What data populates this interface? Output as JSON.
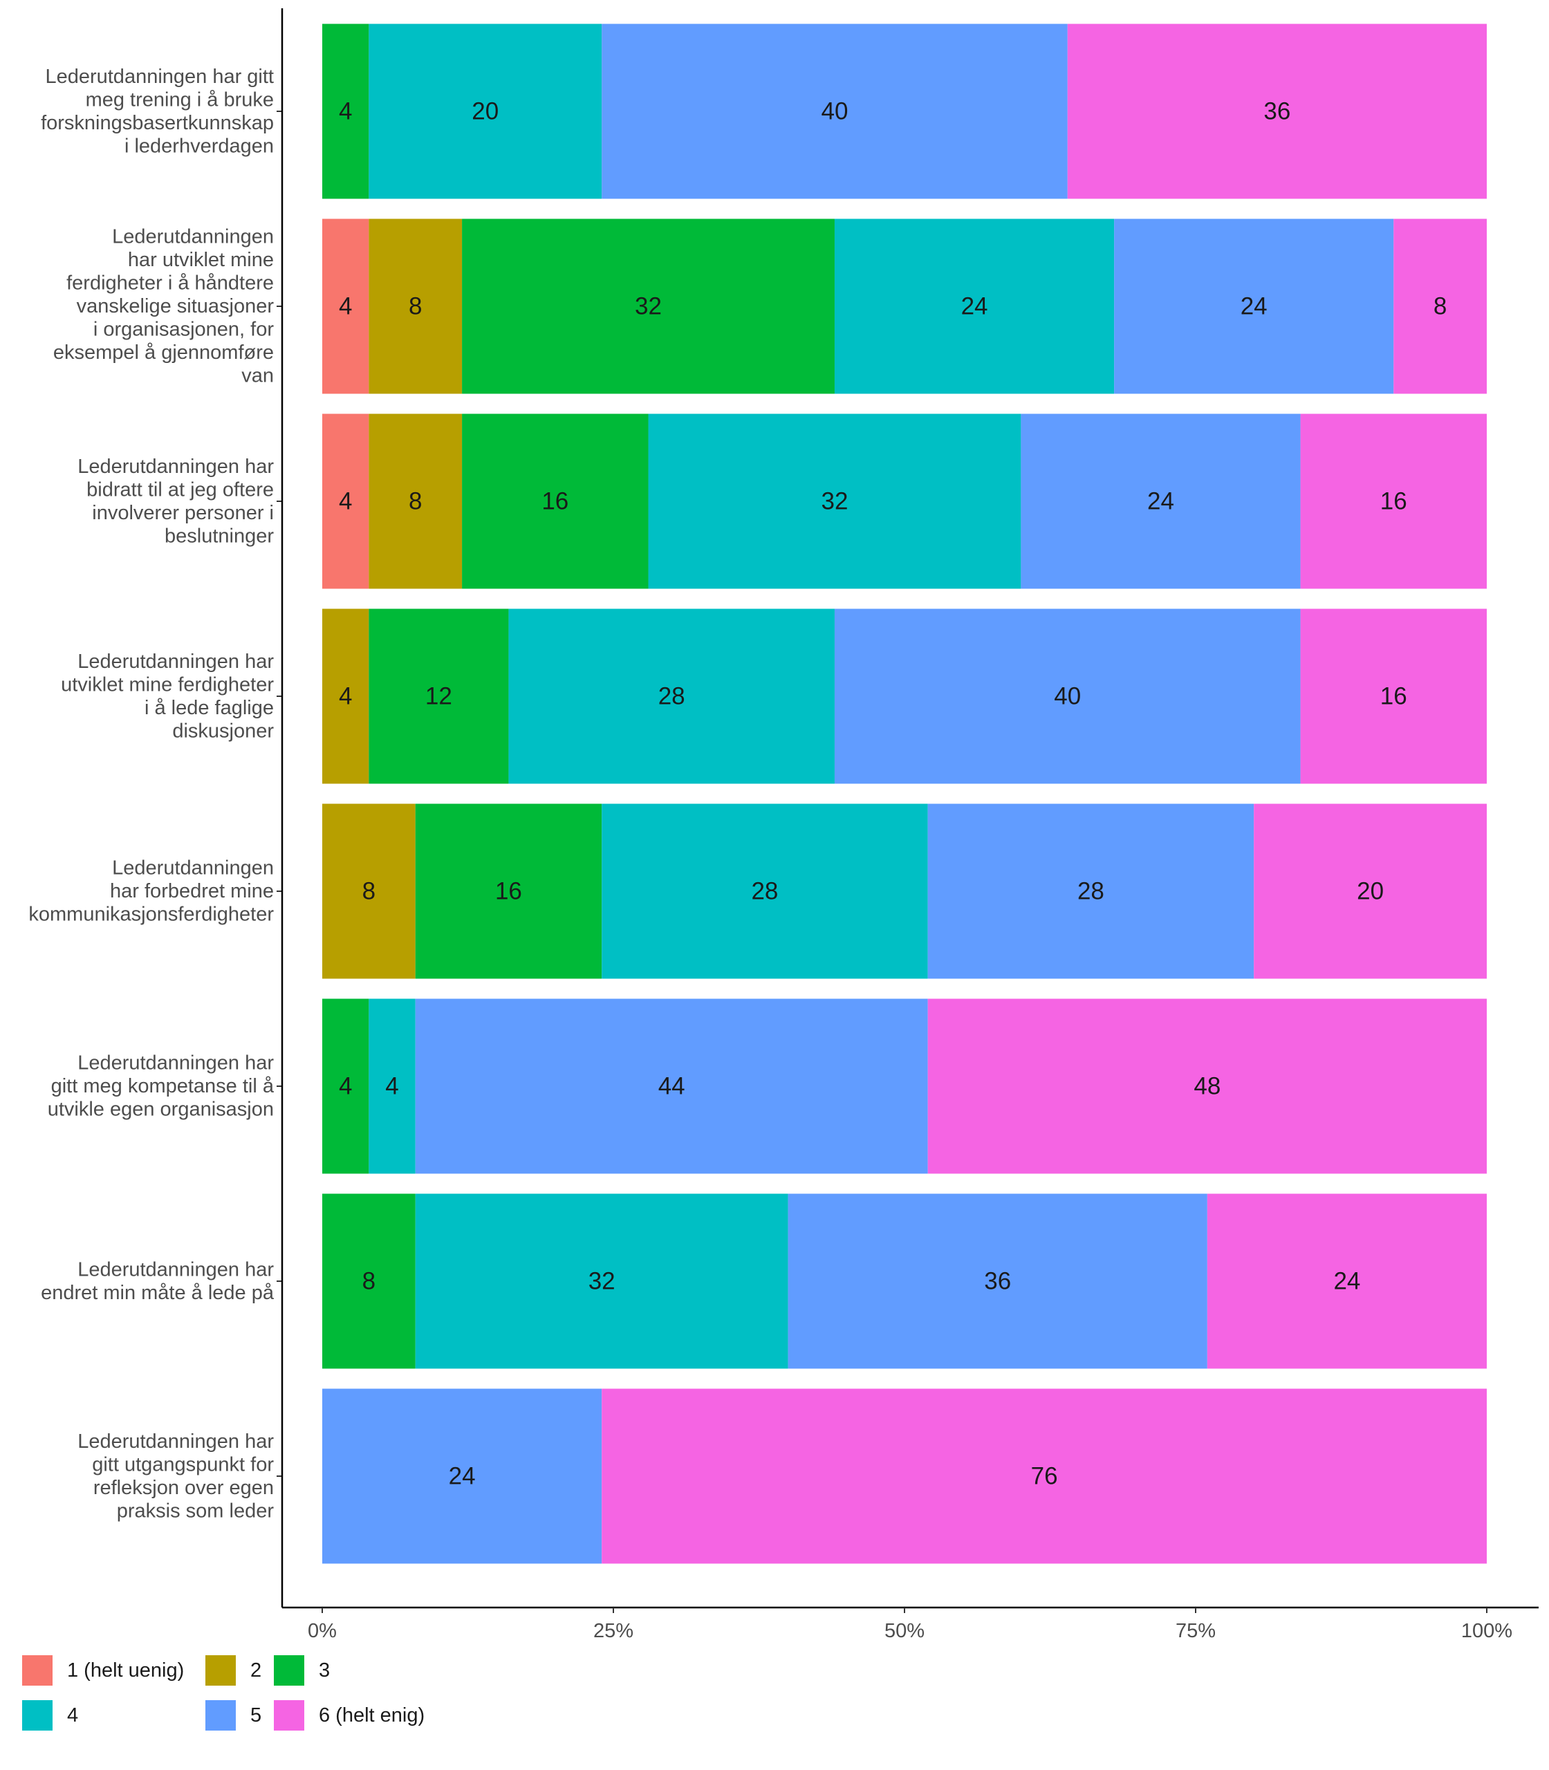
{
  "chart_data": {
    "type": "bar",
    "orientation": "horizontal",
    "stacked": true,
    "normalized_percent": true,
    "title": "",
    "xlabel": "",
    "ylabel": "",
    "xlim": [
      0,
      100
    ],
    "x_ticks": [
      "0%",
      "25%",
      "50%",
      "75%",
      "100%"
    ],
    "grid": false,
    "legend_position": "bottom-left",
    "categories": [
      [
        "Lederutdanningen har gitt",
        "meg trening i å bruke",
        "forskningsbasertkunnskap",
        "i lederhverdagen"
      ],
      [
        "Lederutdanningen",
        "har utviklet mine",
        "ferdigheter i å håndtere",
        "vanskelige situasjoner",
        "i organisasjonen, for",
        "eksempel å gjennomføre",
        "van"
      ],
      [
        "Lederutdanningen har",
        "bidratt til at jeg oftere",
        "involverer personer i",
        "beslutninger"
      ],
      [
        "Lederutdanningen har",
        "utviklet mine ferdigheter",
        "i å lede faglige",
        "diskusjoner"
      ],
      [
        "Lederutdanningen",
        "har forbedret mine",
        "kommunikasjonsferdigheter"
      ],
      [
        "Lederutdanningen har",
        "gitt meg kompetanse til å",
        "utvikle egen organisasjon"
      ],
      [
        "Lederutdanningen har",
        "endret min måte å lede på"
      ],
      [
        "Lederutdanningen har",
        "gitt utgangspunkt for",
        "refleksjon over egen",
        "praksis som leder"
      ]
    ],
    "series": [
      {
        "name": "1 (helt uenig)",
        "color": "#F8766D",
        "values": [
          0,
          4,
          4,
          0,
          0,
          0,
          0,
          0
        ]
      },
      {
        "name": "2",
        "color": "#B79F00",
        "values": [
          0,
          8,
          8,
          4,
          8,
          0,
          0,
          0
        ]
      },
      {
        "name": "3",
        "color": "#00BA38",
        "values": [
          4,
          32,
          16,
          12,
          16,
          4,
          8,
          0
        ]
      },
      {
        "name": "4",
        "color": "#00BFC4",
        "values": [
          20,
          24,
          32,
          28,
          28,
          4,
          32,
          0
        ]
      },
      {
        "name": "5",
        "color": "#619CFF",
        "values": [
          40,
          24,
          24,
          40,
          28,
          44,
          36,
          24
        ]
      },
      {
        "name": "6 (helt enig)",
        "color": "#F564E3",
        "values": [
          36,
          8,
          16,
          16,
          20,
          48,
          24,
          76
        ]
      }
    ]
  }
}
